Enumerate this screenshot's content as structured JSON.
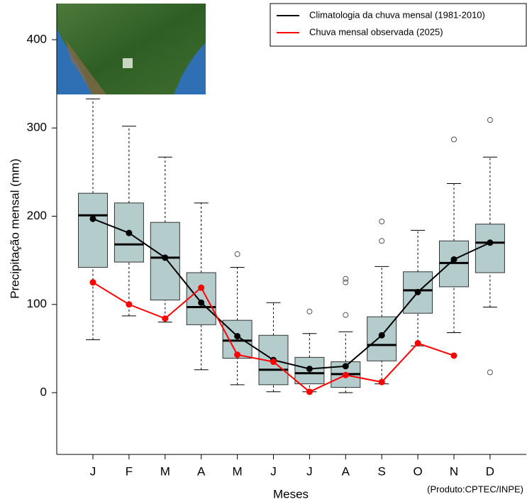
{
  "chart_data": {
    "type": "boxplot",
    "x_label": "Meses",
    "y_label": "Precipitação mensal (mm)",
    "note": "(Produto:CPTEC/INPE)",
    "categories": [
      "J",
      "F",
      "M",
      "A",
      "M",
      "J",
      "J",
      "A",
      "S",
      "O",
      "N",
      "D"
    ],
    "ylim": [
      -70,
      441
    ],
    "yticks": [
      0,
      100,
      200,
      300,
      400
    ],
    "box_color": "#b4cccc",
    "boxes": [
      {
        "whisker_low": 60,
        "q1": 142,
        "median": 201,
        "q3": 226,
        "whisker_high": 333,
        "outliers": []
      },
      {
        "whisker_low": 87,
        "q1": 148,
        "median": 168,
        "q3": 215,
        "whisker_high": 302,
        "outliers": []
      },
      {
        "whisker_low": 80,
        "q1": 105,
        "median": 153,
        "q3": 193,
        "whisker_high": 267,
        "outliers": []
      },
      {
        "whisker_low": 26,
        "q1": 77,
        "median": 97,
        "q3": 136,
        "whisker_high": 215,
        "outliers": []
      },
      {
        "whisker_low": 9,
        "q1": 39,
        "median": 59,
        "q3": 82,
        "whisker_high": 142,
        "outliers": [
          157
        ]
      },
      {
        "whisker_low": 1,
        "q1": 9,
        "median": 26,
        "q3": 65,
        "whisker_high": 102,
        "outliers": []
      },
      {
        "whisker_low": 1,
        "q1": 10,
        "median": 22,
        "q3": 40,
        "whisker_high": 67,
        "outliers": [
          92
        ]
      },
      {
        "whisker_low": 0,
        "q1": 6,
        "median": 21,
        "q3": 35,
        "whisker_high": 69,
        "outliers": [
          88,
          125,
          129
        ]
      },
      {
        "whisker_low": 10,
        "q1": 36,
        "median": 54,
        "q3": 86,
        "whisker_high": 143,
        "outliers": [
          172,
          194
        ]
      },
      {
        "whisker_low": 53,
        "q1": 90,
        "median": 116,
        "q3": 137,
        "whisker_high": 184,
        "outliers": []
      },
      {
        "whisker_low": 68,
        "q1": 120,
        "median": 147,
        "q3": 172,
        "whisker_high": 237,
        "outliers": [
          287
        ]
      },
      {
        "whisker_low": 97,
        "q1": 136,
        "median": 170,
        "q3": 191,
        "whisker_high": 267,
        "outliers": [
          23,
          309
        ]
      }
    ],
    "series": [
      {
        "name": "Climatologia da chuva mensal (1981-2010)",
        "color": "#000000",
        "values": [
          197,
          181,
          153,
          102,
          64,
          37,
          27,
          30,
          65,
          114,
          151,
          170
        ]
      },
      {
        "name": "Chuva mensal observada (2025)",
        "color": "#ff0000",
        "values": [
          125,
          100,
          84,
          119,
          43,
          35,
          1,
          20,
          12,
          56,
          42,
          null
        ]
      }
    ]
  }
}
